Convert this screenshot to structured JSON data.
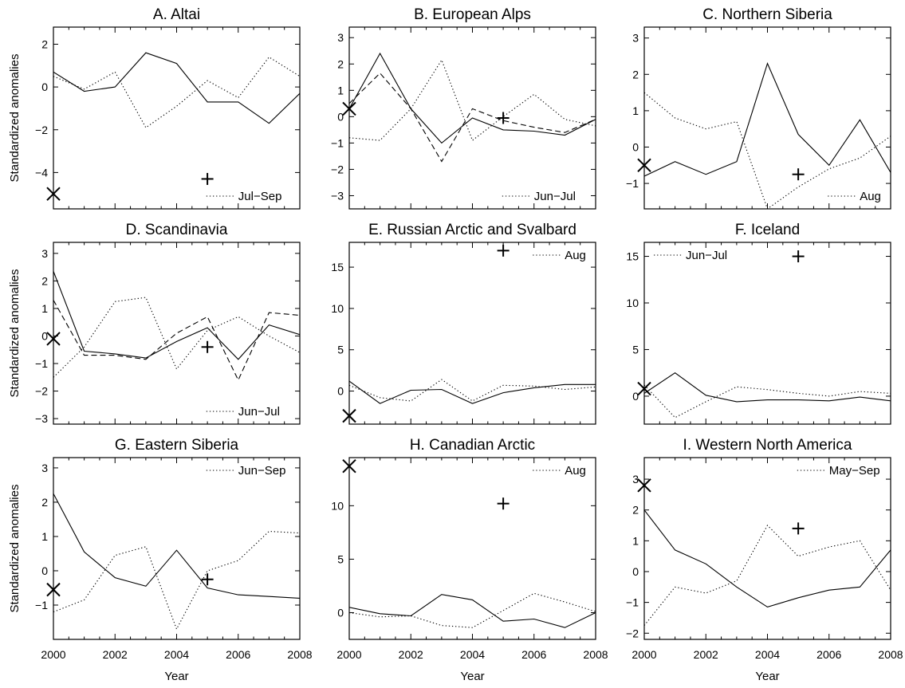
{
  "figure": {
    "ylabel": "Standardized anomalies",
    "xlabel": "Year"
  },
  "chart_data": [
    {
      "type": "line",
      "title": "A. Altai",
      "xlim": [
        2000,
        2008
      ],
      "ylim": [
        -5.7,
        2.8
      ],
      "yticks": [
        2,
        0,
        -2,
        -4
      ],
      "xticks": [],
      "xlabel": "",
      "ylabel": "Standardized anomalies",
      "legend": {
        "label": "Jul−Sep",
        "style": "dotted",
        "position": "bottom-right"
      },
      "series": [
        {
          "style": "solid",
          "x": [
            2000,
            2001,
            2002,
            2003,
            2004,
            2005,
            2006,
            2007,
            2008
          ],
          "y": [
            0.7,
            -0.2,
            0.0,
            1.6,
            1.1,
            -0.7,
            -0.7,
            -1.7,
            -0.3
          ]
        },
        {
          "style": "dotted",
          "x": [
            2000,
            2001,
            2002,
            2003,
            2004,
            2005,
            2006,
            2007,
            2008
          ],
          "y": [
            0.5,
            -0.1,
            0.7,
            -1.9,
            -0.9,
            0.3,
            -0.5,
            1.4,
            0.5
          ]
        }
      ],
      "markers": [
        {
          "symbol": "x",
          "x": 2000,
          "y": -5.0
        },
        {
          "symbol": "+",
          "x": 2005,
          "y": -4.3
        }
      ]
    },
    {
      "type": "line",
      "title": "B. European Alps",
      "xlim": [
        2000,
        2008
      ],
      "ylim": [
        -3.5,
        3.4
      ],
      "yticks": [
        3,
        2,
        1,
        0,
        -1,
        -2,
        -3
      ],
      "xticks": [],
      "xlabel": "",
      "ylabel": "",
      "legend": {
        "label": "Jun−Jul",
        "style": "dotted",
        "position": "bottom-right"
      },
      "series": [
        {
          "style": "solid",
          "x": [
            2000,
            2001,
            2002,
            2003,
            2004,
            2005,
            2006,
            2007,
            2008
          ],
          "y": [
            0.3,
            2.4,
            0.3,
            -1.0,
            -0.05,
            -0.5,
            -0.55,
            -0.7,
            -0.1
          ]
        },
        {
          "style": "dashed",
          "x": [
            2000,
            2001,
            2002,
            2003,
            2004,
            2005,
            2006,
            2007,
            2008
          ],
          "y": [
            0.5,
            1.65,
            0.3,
            -1.7,
            0.3,
            -0.15,
            -0.4,
            -0.6,
            -0.1
          ]
        },
        {
          "style": "dotted",
          "x": [
            2000,
            2001,
            2002,
            2003,
            2004,
            2005,
            2006,
            2007,
            2008
          ],
          "y": [
            -0.8,
            -0.9,
            0.3,
            2.15,
            -0.9,
            0.0,
            0.85,
            -0.1,
            -0.35
          ]
        }
      ],
      "markers": [
        {
          "symbol": "x",
          "x": 2000,
          "y": 0.3
        },
        {
          "symbol": "+",
          "x": 2005,
          "y": -0.05
        }
      ]
    },
    {
      "type": "line",
      "title": "C. Northern Siberia",
      "xlim": [
        2000,
        2008
      ],
      "ylim": [
        -1.7,
        3.3
      ],
      "yticks": [
        3,
        2,
        1,
        0,
        -1
      ],
      "xticks": [],
      "xlabel": "",
      "ylabel": "",
      "legend": {
        "label": "Aug",
        "style": "dotted",
        "position": "bottom-right"
      },
      "series": [
        {
          "style": "solid",
          "x": [
            2000,
            2001,
            2002,
            2003,
            2004,
            2005,
            2006,
            2007,
            2008
          ],
          "y": [
            -0.8,
            -0.4,
            -0.75,
            -0.4,
            2.3,
            0.35,
            -0.5,
            0.75,
            -0.7
          ]
        },
        {
          "style": "dotted",
          "x": [
            2000,
            2001,
            2002,
            2003,
            2004,
            2005,
            2006,
            2007,
            2008
          ],
          "y": [
            1.5,
            0.8,
            0.5,
            0.7,
            -1.7,
            -1.1,
            -0.6,
            -0.3,
            0.3
          ]
        }
      ],
      "markers": [
        {
          "symbol": "x",
          "x": 2000,
          "y": -0.5
        },
        {
          "symbol": "+",
          "x": 2005,
          "y": -0.75
        }
      ]
    },
    {
      "type": "line",
      "title": "D. Scandinavia",
      "xlim": [
        2000,
        2008
      ],
      "ylim": [
        -3.2,
        3.4
      ],
      "yticks": [
        3,
        2,
        1,
        0,
        -1,
        -2,
        -3
      ],
      "xticks": [],
      "xlabel": "",
      "ylabel": "Standardized anomalies",
      "legend": {
        "label": "Jun−Jul",
        "style": "dotted",
        "position": "bottom-right"
      },
      "series": [
        {
          "style": "solid",
          "x": [
            2000,
            2001,
            2002,
            2003,
            2004,
            2005,
            2006,
            2007,
            2008
          ],
          "y": [
            2.35,
            -0.55,
            -0.65,
            -0.8,
            -0.2,
            0.3,
            -0.85,
            0.4,
            0.05
          ]
        },
        {
          "style": "dashed",
          "x": [
            2000,
            2001,
            2002,
            2003,
            2004,
            2005,
            2006,
            2007,
            2008
          ],
          "y": [
            1.3,
            -0.7,
            -0.7,
            -0.85,
            0.1,
            0.7,
            -1.6,
            0.85,
            0.75
          ]
        },
        {
          "style": "dotted",
          "x": [
            2000,
            2001,
            2002,
            2003,
            2004,
            2005,
            2006,
            2007,
            2008
          ],
          "y": [
            -1.5,
            -0.4,
            1.25,
            1.4,
            -1.2,
            0.2,
            0.7,
            0.0,
            -0.6
          ]
        }
      ],
      "markers": [
        {
          "symbol": "x",
          "x": 2000,
          "y": -0.1
        },
        {
          "symbol": "+",
          "x": 2005,
          "y": -0.4
        }
      ]
    },
    {
      "type": "line",
      "title": "E. Russian Arctic and Svalbard",
      "xlim": [
        2000,
        2008
      ],
      "ylim": [
        -4,
        18
      ],
      "yticks": [
        15,
        10,
        5,
        0
      ],
      "xticks": [],
      "xlabel": "",
      "ylabel": "",
      "legend": {
        "label": "Aug",
        "style": "dotted",
        "position": "top-right"
      },
      "series": [
        {
          "style": "solid",
          "x": [
            2000,
            2001,
            2002,
            2003,
            2004,
            2005,
            2006,
            2007,
            2008
          ],
          "y": [
            1.2,
            -1.5,
            0.1,
            0.2,
            -1.5,
            -0.2,
            0.4,
            0.8,
            0.8
          ]
        },
        {
          "style": "dotted",
          "x": [
            2000,
            2001,
            2002,
            2003,
            2004,
            2005,
            2006,
            2007,
            2008
          ],
          "y": [
            0.7,
            -0.8,
            -1.2,
            1.4,
            -1.2,
            0.7,
            0.6,
            0.2,
            0.5
          ]
        }
      ],
      "markers": [
        {
          "symbol": "x",
          "x": 2000,
          "y": -3.0
        },
        {
          "symbol": "+",
          "x": 2005,
          "y": 17.0
        }
      ]
    },
    {
      "type": "line",
      "title": "F. Iceland",
      "xlim": [
        2000,
        2008
      ],
      "ylim": [
        -3,
        16.5
      ],
      "yticks": [
        15,
        10,
        5,
        0
      ],
      "xticks": [],
      "xlabel": "",
      "ylabel": "",
      "legend": {
        "label": "Jun−Jul",
        "style": "dotted",
        "position": "top-left"
      },
      "series": [
        {
          "style": "solid",
          "x": [
            2000,
            2001,
            2002,
            2003,
            2004,
            2005,
            2006,
            2007,
            2008
          ],
          "y": [
            0.3,
            2.5,
            0.1,
            -0.6,
            -0.4,
            -0.4,
            -0.5,
            -0.1,
            -0.5
          ]
        },
        {
          "style": "dotted",
          "x": [
            2000,
            2001,
            2002,
            2003,
            2004,
            2005,
            2006,
            2007,
            2008
          ],
          "y": [
            1.2,
            -2.3,
            -0.6,
            1.0,
            0.7,
            0.3,
            0.0,
            0.5,
            0.3
          ]
        }
      ],
      "markers": [
        {
          "symbol": "x",
          "x": 2000,
          "y": 0.8
        },
        {
          "symbol": "+",
          "x": 2005,
          "y": 15.0
        }
      ]
    },
    {
      "type": "line",
      "title": "G. Eastern Siberia",
      "xlim": [
        2000,
        2008
      ],
      "ylim": [
        -2.0,
        3.3
      ],
      "yticks": [
        3,
        2,
        1,
        0,
        -1
      ],
      "xticks": [
        2000,
        2002,
        2004,
        2006,
        2008
      ],
      "xlabel": "Year",
      "ylabel": "Standardized anomalies",
      "legend": {
        "label": "Jun−Sep",
        "style": "dotted",
        "position": "top-right"
      },
      "series": [
        {
          "style": "solid",
          "x": [
            2000,
            2001,
            2002,
            2003,
            2004,
            2005,
            2006,
            2007,
            2008
          ],
          "y": [
            2.25,
            0.55,
            -0.2,
            -0.45,
            0.6,
            -0.5,
            -0.7,
            -0.75,
            -0.8
          ]
        },
        {
          "style": "dotted",
          "x": [
            2000,
            2001,
            2002,
            2003,
            2004,
            2005,
            2006,
            2007,
            2008
          ],
          "y": [
            -1.2,
            -0.85,
            0.45,
            0.7,
            -1.7,
            0.0,
            0.3,
            1.15,
            1.1
          ]
        }
      ],
      "markers": [
        {
          "symbol": "x",
          "x": 2000,
          "y": -0.55
        },
        {
          "symbol": "+",
          "x": 2005,
          "y": -0.25
        }
      ]
    },
    {
      "type": "line",
      "title": "H. Canadian Arctic",
      "xlim": [
        2000,
        2008
      ],
      "ylim": [
        -2.5,
        14.5
      ],
      "yticks": [
        10,
        5,
        0
      ],
      "xticks": [
        2000,
        2002,
        2004,
        2006,
        2008
      ],
      "xlabel": "Year",
      "ylabel": "",
      "legend": {
        "label": "Aug",
        "style": "dotted",
        "position": "top-right"
      },
      "series": [
        {
          "style": "solid",
          "x": [
            2000,
            2001,
            2002,
            2003,
            2004,
            2005,
            2006,
            2007,
            2008
          ],
          "y": [
            0.5,
            -0.1,
            -0.3,
            1.7,
            1.2,
            -0.8,
            -0.6,
            -1.4,
            0.0
          ]
        },
        {
          "style": "dotted",
          "x": [
            2000,
            2001,
            2002,
            2003,
            2004,
            2005,
            2006,
            2007,
            2008
          ],
          "y": [
            0.0,
            -0.4,
            -0.3,
            -1.2,
            -1.4,
            0.2,
            1.8,
            1.0,
            0.1
          ]
        }
      ],
      "markers": [
        {
          "symbol": "x",
          "x": 2000,
          "y": 13.7
        },
        {
          "symbol": "+",
          "x": 2005,
          "y": 10.2
        }
      ]
    },
    {
      "type": "line",
      "title": "I. Western North America",
      "xlim": [
        2000,
        2008
      ],
      "ylim": [
        -2.2,
        3.7
      ],
      "yticks": [
        3,
        2,
        1,
        0,
        -1,
        -2
      ],
      "xticks": [
        2000,
        2002,
        2004,
        2006,
        2008
      ],
      "xlabel": "Year",
      "ylabel": "",
      "legend": {
        "label": "May−Sep",
        "style": "dotted",
        "position": "top-right"
      },
      "series": [
        {
          "style": "solid",
          "x": [
            2000,
            2001,
            2002,
            2003,
            2004,
            2005,
            2006,
            2007,
            2008
          ],
          "y": [
            2.0,
            0.7,
            0.25,
            -0.5,
            -1.15,
            -0.85,
            -0.6,
            -0.5,
            0.7
          ]
        },
        {
          "style": "dotted",
          "x": [
            2000,
            2001,
            2002,
            2003,
            2004,
            2005,
            2006,
            2007,
            2008
          ],
          "y": [
            -1.75,
            -0.5,
            -0.7,
            -0.3,
            1.5,
            0.5,
            0.8,
            1.0,
            -0.6
          ]
        }
      ],
      "markers": [
        {
          "symbol": "x",
          "x": 2000,
          "y": 2.8
        },
        {
          "symbol": "+",
          "x": 2005,
          "y": 1.4
        }
      ]
    }
  ]
}
